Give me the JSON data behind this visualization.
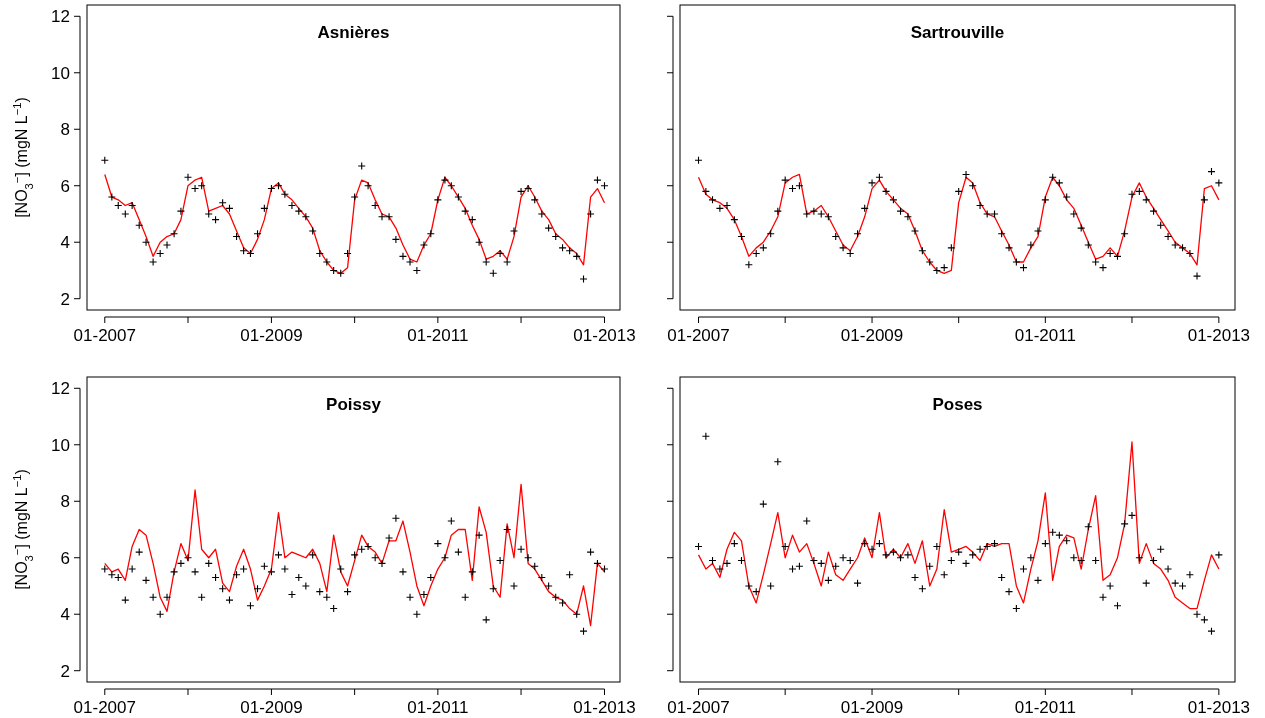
{
  "chart_data": [
    {
      "type": "line",
      "title": "Asnières",
      "ylabel": "[NO$_{3}$$^{−}$] (mgN L$^{−1}$)",
      "xlim": [
        "2006-10-15",
        "2013-03-10"
      ],
      "ylim": [
        1.6,
        12.4
      ],
      "yticks": [
        2,
        4,
        6,
        8,
        10,
        12
      ],
      "xticks": [
        {
          "value": "2007-01",
          "label": "01-2007"
        },
        {
          "value": "2008-01",
          "label": null
        },
        {
          "value": "2009-01",
          "label": "01-2009"
        },
        {
          "value": "2010-01",
          "label": null
        },
        {
          "value": "2011-01",
          "label": "01-2011"
        },
        {
          "value": "2012-01",
          "label": null
        },
        {
          "value": "2013-01",
          "label": "01-2013"
        }
      ],
      "x": [
        "2007-01",
        "2007-02",
        "2007-03",
        "2007-04",
        "2007-05",
        "2007-06",
        "2007-07",
        "2007-08",
        "2007-09",
        "2007-10",
        "2007-11",
        "2007-12",
        "2008-01",
        "2008-02",
        "2008-03",
        "2008-04",
        "2008-05",
        "2008-06",
        "2008-07",
        "2008-08",
        "2008-09",
        "2008-10",
        "2008-11",
        "2008-12",
        "2009-01",
        "2009-02",
        "2009-03",
        "2009-04",
        "2009-05",
        "2009-06",
        "2009-07",
        "2009-08",
        "2009-09",
        "2009-10",
        "2009-11",
        "2009-12",
        "2010-01",
        "2010-02",
        "2010-03",
        "2010-04",
        "2010-05",
        "2010-06",
        "2010-07",
        "2010-08",
        "2010-09",
        "2010-10",
        "2010-11",
        "2010-12",
        "2011-01",
        "2011-02",
        "2011-03",
        "2011-04",
        "2011-05",
        "2011-06",
        "2011-07",
        "2011-08",
        "2011-09",
        "2011-10",
        "2011-11",
        "2011-12",
        "2012-01",
        "2012-02",
        "2012-03",
        "2012-04",
        "2012-05",
        "2012-06",
        "2012-07",
        "2012-08",
        "2012-09",
        "2012-10",
        "2012-11",
        "2012-12",
        "2013-01"
      ],
      "series": [
        {
          "color": "#ff0000",
          "values": [
            6.4,
            5.6,
            5.5,
            5.3,
            5.4,
            4.8,
            4.2,
            3.5,
            4.0,
            4.2,
            4.3,
            4.8,
            6.0,
            6.2,
            6.3,
            5.1,
            5.2,
            5.3,
            5.0,
            4.4,
            3.8,
            3.6,
            4.1,
            4.8,
            5.9,
            6.1,
            5.7,
            5.5,
            5.2,
            4.9,
            4.5,
            3.7,
            3.3,
            3.0,
            2.9,
            3.1,
            5.5,
            6.2,
            6.1,
            5.5,
            5.0,
            4.9,
            4.5,
            3.9,
            3.4,
            3.3,
            3.9,
            4.3,
            5.5,
            6.3,
            6.0,
            5.6,
            5.2,
            4.6,
            4.1,
            3.4,
            3.5,
            3.7,
            3.4,
            4.2,
            5.6,
            6.0,
            5.6,
            5.1,
            4.8,
            4.3,
            4.1,
            3.8,
            3.6,
            3.2,
            5.6,
            5.9,
            5.4
          ]
        },
        {
          "type": "scatter",
          "color": "#000000",
          "marker": "cross",
          "values": [
            6.9,
            5.6,
            5.3,
            5.0,
            5.3,
            4.6,
            4.0,
            3.3,
            3.6,
            3.9,
            4.3,
            5.1,
            6.3,
            5.9,
            6.0,
            5.0,
            4.8,
            5.4,
            5.2,
            4.2,
            3.7,
            3.6,
            4.3,
            5.2,
            5.9,
            6.0,
            5.7,
            5.3,
            5.1,
            4.9,
            4.4,
            3.6,
            3.3,
            3.0,
            2.9,
            3.6,
            5.6,
            6.7,
            6.0,
            5.3,
            4.9,
            4.9,
            4.1,
            3.5,
            3.3,
            3.0,
            3.9,
            4.3,
            5.5,
            6.2,
            6.0,
            5.6,
            5.1,
            4.8,
            4.0,
            3.3,
            2.9,
            3.6,
            3.3,
            4.4,
            5.8,
            5.9,
            5.5,
            5.0,
            4.5,
            4.2,
            3.8,
            3.7,
            3.5,
            2.7,
            5.0,
            6.2,
            6.0
          ]
        }
      ]
    },
    {
      "type": "line",
      "title": "Sartrouville",
      "tick_labels": "x",
      "xlim": [
        "2006-10-15",
        "2013-03-10"
      ],
      "ylim": [
        1.6,
        12.4
      ],
      "yticks": [
        2,
        4,
        6,
        8,
        10,
        12
      ],
      "xticks": [
        {
          "value": "2007-01",
          "label": "01-2007"
        },
        {
          "value": "2008-01",
          "label": null
        },
        {
          "value": "2009-01",
          "label": "01-2009"
        },
        {
          "value": "2010-01",
          "label": null
        },
        {
          "value": "2011-01",
          "label": "01-2011"
        },
        {
          "value": "2012-01",
          "label": null
        },
        {
          "value": "2013-01",
          "label": "01-2013"
        }
      ],
      "x": [
        "2007-01",
        "2007-02",
        "2007-03",
        "2007-04",
        "2007-05",
        "2007-06",
        "2007-07",
        "2007-08",
        "2007-09",
        "2007-10",
        "2007-11",
        "2007-12",
        "2008-01",
        "2008-02",
        "2008-03",
        "2008-04",
        "2008-05",
        "2008-06",
        "2008-07",
        "2008-08",
        "2008-09",
        "2008-10",
        "2008-11",
        "2008-12",
        "2009-01",
        "2009-02",
        "2009-03",
        "2009-04",
        "2009-05",
        "2009-06",
        "2009-07",
        "2009-08",
        "2009-09",
        "2009-10",
        "2009-11",
        "2009-12",
        "2010-01",
        "2010-02",
        "2010-03",
        "2010-04",
        "2010-05",
        "2010-06",
        "2010-07",
        "2010-08",
        "2010-09",
        "2010-10",
        "2010-11",
        "2010-12",
        "2011-01",
        "2011-02",
        "2011-03",
        "2011-04",
        "2011-05",
        "2011-06",
        "2011-07",
        "2011-08",
        "2011-09",
        "2011-10",
        "2011-11",
        "2011-12",
        "2012-01",
        "2012-02",
        "2012-03",
        "2012-04",
        "2012-05",
        "2012-06",
        "2012-07",
        "2012-08",
        "2012-09",
        "2012-10",
        "2012-11",
        "2012-12",
        "2013-01"
      ],
      "series": [
        {
          "color": "#ff0000",
          "values": [
            6.3,
            5.7,
            5.5,
            5.4,
            5.2,
            4.8,
            4.2,
            3.5,
            3.8,
            4.0,
            4.4,
            4.9,
            6.1,
            6.3,
            6.4,
            5.0,
            5.1,
            5.3,
            4.9,
            4.4,
            3.9,
            3.7,
            4.2,
            4.9,
            5.9,
            6.2,
            5.8,
            5.5,
            5.2,
            5.0,
            4.4,
            3.7,
            3.3,
            3.0,
            2.9,
            3.0,
            5.4,
            6.3,
            6.1,
            5.4,
            5.0,
            4.9,
            4.4,
            3.9,
            3.3,
            3.3,
            3.8,
            4.2,
            5.6,
            6.3,
            6.0,
            5.5,
            5.2,
            4.6,
            4.0,
            3.4,
            3.5,
            3.8,
            3.5,
            4.4,
            5.6,
            6.1,
            5.6,
            5.2,
            4.8,
            4.4,
            4.0,
            3.8,
            3.6,
            3.2,
            5.9,
            6.0,
            5.5
          ]
        },
        {
          "type": "scatter",
          "color": "#000000",
          "marker": "cross",
          "values": [
            6.9,
            5.8,
            5.5,
            5.2,
            5.3,
            4.8,
            4.2,
            3.2,
            3.6,
            3.8,
            4.3,
            5.1,
            6.2,
            5.9,
            6.0,
            5.0,
            5.1,
            5.0,
            4.9,
            4.2,
            3.8,
            3.6,
            4.3,
            5.2,
            6.1,
            6.3,
            5.8,
            5.5,
            5.1,
            4.9,
            4.4,
            3.7,
            3.3,
            3.0,
            3.1,
            3.8,
            5.8,
            6.4,
            6.0,
            5.3,
            5.0,
            5.0,
            4.3,
            3.8,
            3.3,
            3.1,
            3.9,
            4.4,
            5.5,
            6.3,
            6.1,
            5.6,
            5.0,
            4.5,
            3.9,
            3.3,
            3.1,
            3.6,
            3.5,
            4.3,
            5.7,
            5.8,
            5.5,
            5.1,
            4.6,
            4.2,
            3.9,
            3.8,
            3.6,
            2.8,
            5.5,
            6.5,
            6.1
          ]
        }
      ]
    },
    {
      "type": "line",
      "title": "Poissy",
      "ylabel": "[NO$_{3}$$^{−}$] (mgN L$^{−1}$)",
      "xlim": [
        "2006-10-15",
        "2013-03-10"
      ],
      "ylim": [
        1.6,
        12.4
      ],
      "yticks": [
        2,
        4,
        6,
        8,
        10,
        12
      ],
      "xticks": [
        {
          "value": "2007-01",
          "label": "01-2007"
        },
        {
          "value": "2008-01",
          "label": null
        },
        {
          "value": "2009-01",
          "label": "01-2009"
        },
        {
          "value": "2010-01",
          "label": null
        },
        {
          "value": "2011-01",
          "label": "01-2011"
        },
        {
          "value": "2012-01",
          "label": null
        },
        {
          "value": "2013-01",
          "label": "01-2013"
        }
      ],
      "x": [
        "2007-01",
        "2007-02",
        "2007-03",
        "2007-04",
        "2007-05",
        "2007-06",
        "2007-07",
        "2007-08",
        "2007-09",
        "2007-10",
        "2007-11",
        "2007-12",
        "2008-01",
        "2008-02",
        "2008-03",
        "2008-04",
        "2008-05",
        "2008-06",
        "2008-07",
        "2008-08",
        "2008-09",
        "2008-10",
        "2008-11",
        "2008-12",
        "2009-01",
        "2009-02",
        "2009-03",
        "2009-04",
        "2009-05",
        "2009-06",
        "2009-07",
        "2009-08",
        "2009-09",
        "2009-10",
        "2009-11",
        "2009-12",
        "2010-01",
        "2010-02",
        "2010-03",
        "2010-04",
        "2010-05",
        "2010-06",
        "2010-07",
        "2010-08",
        "2010-09",
        "2010-10",
        "2010-11",
        "2010-12",
        "2011-01",
        "2011-02",
        "2011-03",
        "2011-04",
        "2011-05",
        "2011-06",
        "2011-07",
        "2011-08",
        "2011-09",
        "2011-10",
        "2011-11",
        "2011-12",
        "2012-01",
        "2012-02",
        "2012-03",
        "2012-04",
        "2012-05",
        "2012-06",
        "2012-07",
        "2012-08",
        "2012-09",
        "2012-10",
        "2012-11",
        "2012-12",
        "2013-01"
      ],
      "series": [
        {
          "color": "#ff0000",
          "values": [
            5.8,
            5.5,
            5.6,
            5.2,
            6.4,
            7.0,
            6.8,
            5.8,
            4.6,
            4.1,
            5.5,
            6.5,
            5.9,
            8.4,
            6.3,
            6.0,
            6.3,
            5.1,
            4.8,
            5.7,
            6.3,
            5.6,
            4.5,
            5.0,
            5.6,
            7.6,
            6.0,
            6.2,
            6.1,
            6.0,
            6.3,
            5.8,
            4.8,
            6.8,
            5.5,
            5.0,
            5.9,
            6.8,
            6.4,
            6.2,
            5.8,
            6.6,
            6.6,
            7.3,
            6.2,
            5.0,
            4.3,
            5.0,
            5.6,
            6.0,
            6.8,
            7.0,
            7.0,
            5.2,
            7.8,
            6.9,
            5.0,
            4.6,
            7.2,
            6.0,
            8.6,
            5.8,
            5.6,
            5.2,
            4.8,
            4.6,
            4.5,
            4.2,
            4.0,
            5.0,
            3.6,
            5.8,
            5.5
          ]
        },
        {
          "type": "scatter",
          "color": "#000000",
          "marker": "cross",
          "values": [
            5.6,
            5.4,
            5.3,
            4.5,
            5.6,
            6.2,
            5.2,
            4.6,
            4.0,
            4.6,
            5.5,
            5.8,
            6.0,
            5.5,
            4.6,
            5.8,
            5.3,
            4.9,
            4.5,
            5.4,
            5.6,
            4.3,
            4.9,
            5.7,
            5.5,
            6.1,
            5.6,
            4.7,
            5.3,
            5.0,
            6.1,
            4.8,
            4.6,
            4.2,
            5.6,
            4.8,
            6.1,
            6.3,
            6.4,
            6.0,
            5.8,
            6.7,
            7.4,
            5.5,
            4.6,
            4.0,
            4.7,
            5.3,
            6.5,
            6.0,
            7.3,
            6.2,
            4.6,
            5.5,
            6.8,
            3.8,
            4.9,
            5.9,
            7.0,
            5.0,
            6.3,
            6.0,
            5.7,
            5.3,
            5.0,
            4.6,
            4.4,
            5.4,
            4.0,
            3.4,
            6.2,
            5.8,
            5.6
          ]
        }
      ]
    },
    {
      "type": "line",
      "title": "Poses",
      "tick_labels": "x",
      "xlim": [
        "2006-10-15",
        "2013-03-10"
      ],
      "ylim": [
        1.6,
        12.4
      ],
      "yticks": [
        2,
        4,
        6,
        8,
        10,
        12
      ],
      "xticks": [
        {
          "value": "2007-01",
          "label": "01-2007"
        },
        {
          "value": "2008-01",
          "label": null
        },
        {
          "value": "2009-01",
          "label": "01-2009"
        },
        {
          "value": "2010-01",
          "label": null
        },
        {
          "value": "2011-01",
          "label": "01-2011"
        },
        {
          "value": "2012-01",
          "label": null
        },
        {
          "value": "2013-01",
          "label": "01-2013"
        }
      ],
      "x": [
        "2007-01",
        "2007-02",
        "2007-03",
        "2007-04",
        "2007-05",
        "2007-06",
        "2007-07",
        "2007-08",
        "2007-09",
        "2007-10",
        "2007-11",
        "2007-12",
        "2008-01",
        "2008-02",
        "2008-03",
        "2008-04",
        "2008-05",
        "2008-06",
        "2008-07",
        "2008-08",
        "2008-09",
        "2008-10",
        "2008-11",
        "2008-12",
        "2009-01",
        "2009-02",
        "2009-03",
        "2009-04",
        "2009-05",
        "2009-06",
        "2009-07",
        "2009-08",
        "2009-09",
        "2009-10",
        "2009-11",
        "2009-12",
        "2010-01",
        "2010-02",
        "2010-03",
        "2010-04",
        "2010-05",
        "2010-06",
        "2010-07",
        "2010-08",
        "2010-09",
        "2010-10",
        "2010-11",
        "2010-12",
        "2011-01",
        "2011-02",
        "2011-03",
        "2011-04",
        "2011-05",
        "2011-06",
        "2011-07",
        "2011-08",
        "2011-09",
        "2011-10",
        "2011-11",
        "2011-12",
        "2012-01",
        "2012-02",
        "2012-03",
        "2012-04",
        "2012-05",
        "2012-06",
        "2012-07",
        "2012-08",
        "2012-09",
        "2012-10",
        "2012-11",
        "2012-12",
        "2013-01"
      ],
      "series": [
        {
          "color": "#ff0000",
          "values": [
            6.1,
            5.6,
            5.8,
            5.3,
            6.3,
            6.9,
            6.6,
            5.0,
            4.4,
            5.4,
            6.5,
            7.6,
            6.0,
            6.8,
            6.2,
            6.5,
            5.8,
            5.0,
            6.2,
            5.4,
            5.2,
            5.6,
            6.0,
            6.7,
            6.0,
            7.6,
            6.0,
            6.3,
            6.0,
            6.5,
            5.8,
            6.6,
            5.0,
            5.6,
            7.7,
            6.2,
            6.3,
            6.4,
            6.2,
            5.9,
            6.5,
            6.4,
            6.5,
            6.5,
            5.0,
            4.4,
            5.6,
            6.6,
            8.3,
            5.2,
            6.4,
            6.8,
            6.7,
            5.6,
            7.0,
            8.2,
            5.2,
            5.4,
            6.0,
            7.2,
            10.1,
            5.8,
            6.5,
            5.8,
            5.6,
            5.2,
            4.6,
            4.4,
            4.2,
            4.2,
            5.2,
            6.1,
            5.6
          ]
        },
        {
          "type": "scatter",
          "color": "#000000",
          "marker": "cross",
          "values": [
            6.4,
            10.3,
            5.9,
            5.6,
            5.8,
            6.5,
            5.9,
            5.0,
            4.8,
            7.9,
            5.0,
            9.4,
            6.4,
            5.6,
            5.7,
            7.3,
            5.9,
            5.8,
            5.2,
            5.7,
            6.0,
            5.9,
            5.1,
            6.5,
            6.3,
            6.5,
            6.1,
            6.2,
            6.0,
            6.1,
            5.3,
            4.9,
            5.7,
            6.4,
            5.4,
            5.9,
            6.2,
            5.8,
            6.1,
            6.3,
            6.4,
            6.5,
            5.3,
            4.8,
            4.2,
            5.6,
            6.0,
            5.2,
            6.5,
            6.9,
            6.8,
            6.6,
            6.0,
            5.9,
            7.1,
            5.9,
            4.6,
            5.0,
            4.3,
            7.2,
            7.5,
            6.0,
            5.1,
            5.9,
            6.3,
            5.6,
            5.1,
            5.0,
            5.4,
            4.0,
            3.8,
            3.4,
            6.1
          ]
        }
      ]
    }
  ]
}
